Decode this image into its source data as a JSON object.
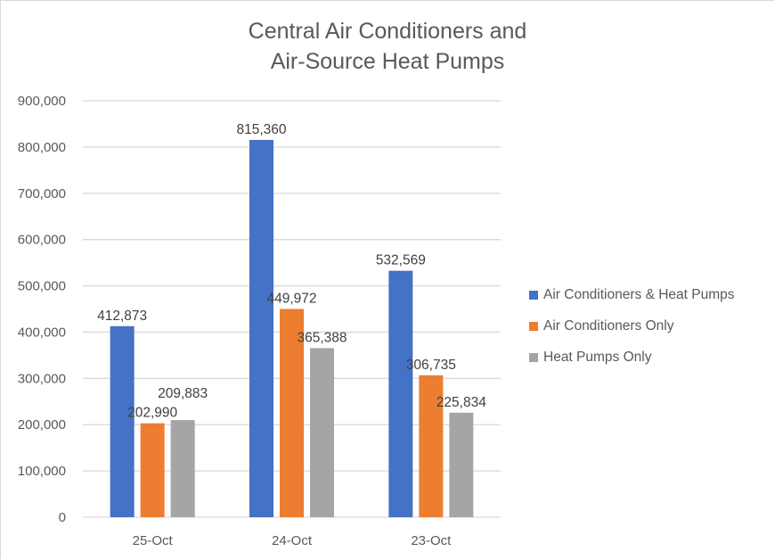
{
  "chart_data": {
    "type": "bar",
    "title": [
      "Central Air Conditioners and",
      "Air-Source Heat Pumps"
    ],
    "xlabel": "",
    "ylabel": "",
    "categories": [
      "25-Oct",
      "24-Oct",
      "23-Oct"
    ],
    "series": [
      {
        "name": "Air Conditioners & Heat Pumps",
        "color": "#4472c4",
        "values": [
          412873,
          815360,
          532569
        ]
      },
      {
        "name": "Air Conditioners Only",
        "color": "#ed7d31",
        "values": [
          202990,
          449972,
          306735
        ]
      },
      {
        "name": "Heat Pumps Only",
        "color": "#a5a5a5",
        "values": [
          209883,
          365388,
          225834
        ]
      }
    ],
    "data_labels": [
      [
        "412,873",
        "815,360",
        "532,569"
      ],
      [
        "202,990",
        "449,972",
        "306,735"
      ],
      [
        "209,883",
        "365,388",
        "225,834"
      ]
    ],
    "ylim": [
      0,
      900000
    ],
    "yticks": [
      0,
      100000,
      200000,
      300000,
      400000,
      500000,
      600000,
      700000,
      800000,
      900000
    ],
    "ytick_labels": [
      "0",
      "100,000",
      "200,000",
      "300,000",
      "400,000",
      "500,000",
      "600,000",
      "700,000",
      "800,000",
      "900,000"
    ],
    "grid": true,
    "legend_position": "right"
  }
}
